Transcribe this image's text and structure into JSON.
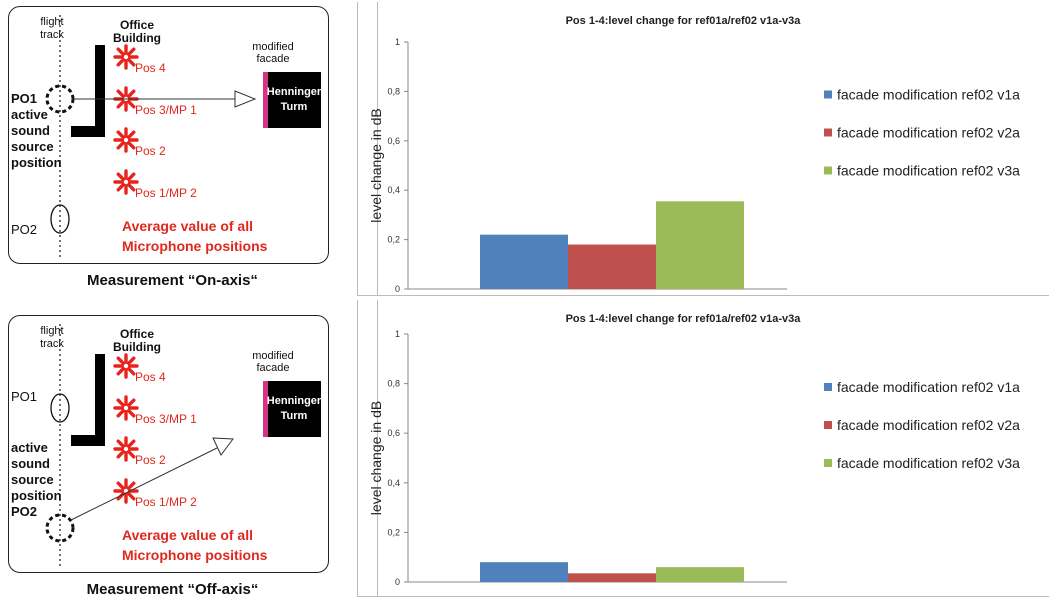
{
  "diagrams": [
    {
      "flight_track": [
        "flight",
        "track"
      ],
      "building": [
        "Office",
        "Building"
      ],
      "modified_facade": [
        "modified",
        "facade"
      ],
      "tower": [
        "Henninger",
        "Turm"
      ],
      "positions": [
        "Pos 4",
        "Pos 3/MP 1",
        "Pos 2",
        "Pos 1/MP 2"
      ],
      "source_upper": [
        "PO1",
        "active",
        "sound",
        "source",
        "position"
      ],
      "source_lower": [
        "PO2"
      ],
      "average": [
        "Average value of all",
        "Microphone positions"
      ],
      "caption": "Measurement “On-axis“"
    },
    {
      "flight_track": [
        "flight",
        "track"
      ],
      "building": [
        "Office",
        "Building"
      ],
      "modified_facade": [
        "modified",
        "facade"
      ],
      "tower": [
        "Henninger",
        "Turm"
      ],
      "positions": [
        "Pos 4",
        "Pos 3/MP 1",
        "Pos 2",
        "Pos 1/MP 2"
      ],
      "source_upper": [
        "PO1"
      ],
      "source_lower": [
        "active",
        "sound",
        "source",
        "position",
        "PO2"
      ],
      "average": [
        "Average value of all",
        "Microphone positions"
      ],
      "caption": "Measurement “Off-axis“"
    }
  ],
  "colors": {
    "series": [
      "#4f81bd",
      "#c0504d",
      "#9bbb59"
    ],
    "red_text": "#e0281e",
    "facade_strip": "#d63384"
  },
  "chart_data": [
    {
      "type": "bar",
      "title": "Pos 1-4:level change for ref01a/ref02 v1a-v3a",
      "ylabel": "level change in dB",
      "ylim": [
        0,
        1
      ],
      "yticks": [
        "0",
        "0,2",
        "0,4",
        "0,6",
        "0,8",
        "1"
      ],
      "categories": [
        ""
      ],
      "series": [
        {
          "name": "facade modification ref02 v1a",
          "values": [
            0.22
          ]
        },
        {
          "name": "facade modification ref02 v2a",
          "values": [
            0.18
          ]
        },
        {
          "name": "facade modification ref02 v3a",
          "values": [
            0.355
          ]
        }
      ],
      "grid": false,
      "legend": "right"
    },
    {
      "type": "bar",
      "title": "Pos 1-4:level change for ref01a/ref02 v1a-v3a",
      "ylabel": "level change in dB",
      "ylim": [
        0,
        1
      ],
      "yticks": [
        "0",
        "0,2",
        "0,4",
        "0,6",
        "0,8",
        "1"
      ],
      "categories": [
        ""
      ],
      "series": [
        {
          "name": "facade modification ref02 v1a",
          "values": [
            0.08
          ]
        },
        {
          "name": "facade modification ref02 v2a",
          "values": [
            0.035
          ]
        },
        {
          "name": "facade modification ref02 v3a",
          "values": [
            0.06
          ]
        }
      ],
      "grid": false,
      "legend": "right"
    }
  ]
}
